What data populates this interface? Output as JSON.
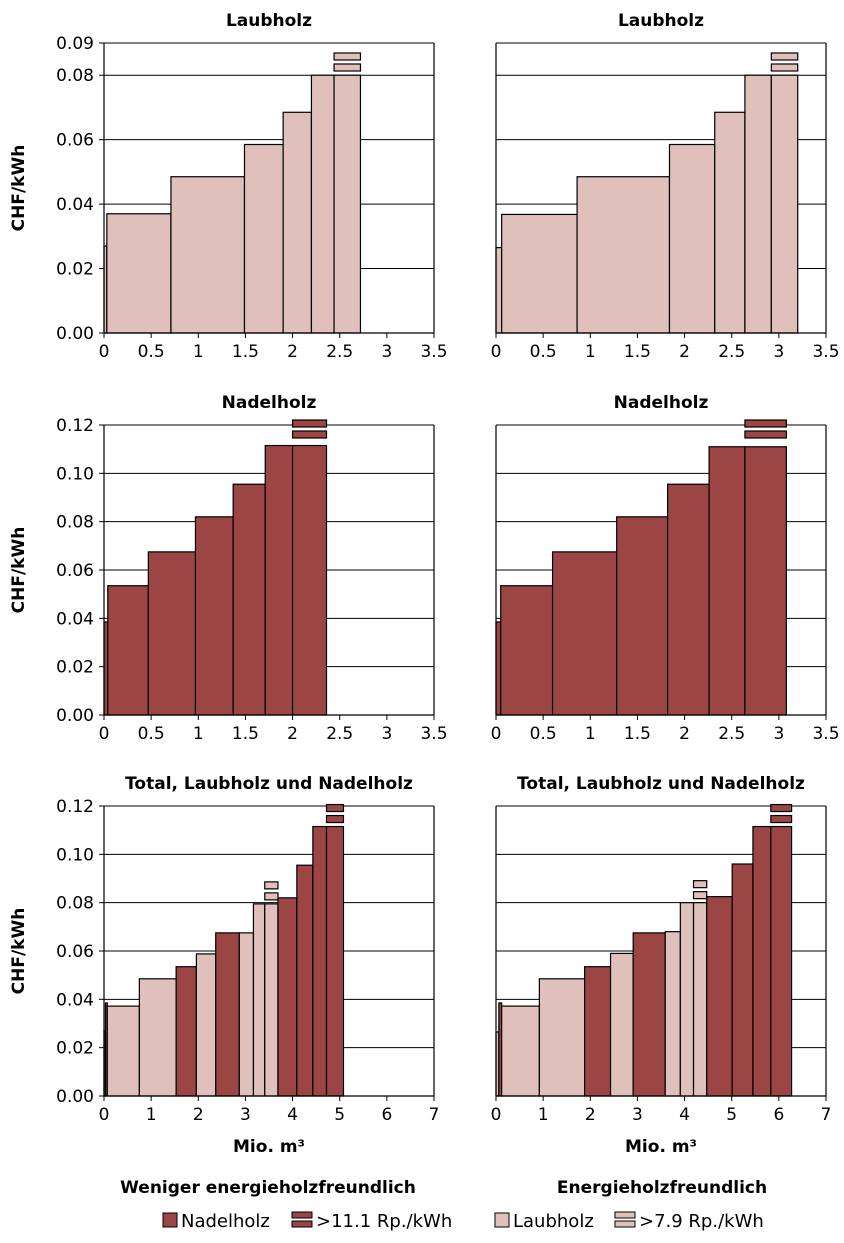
{
  "colors": {
    "nadelholz": "#9b4545",
    "laubholz": "#dfc0bb",
    "stroke": "#000000"
  },
  "column_captions": [
    "Weniger energieholzfreundlich",
    "Energieholzfreundlich"
  ],
  "legend": [
    {
      "label": "Nadelholz",
      "kind": "solid",
      "color_key": "nadelholz"
    },
    {
      "label": ">11.1 Rp./kWh",
      "kind": "striped",
      "color_key": "nadelholz"
    },
    {
      "label": "Laubholz",
      "kind": "solid",
      "color_key": "laubholz"
    },
    {
      "label": ">7.9 Rp./kWh",
      "kind": "striped",
      "color_key": "laubholz"
    }
  ],
  "chart_data": [
    {
      "type": "bar",
      "title": "Laubholz",
      "ylabel": "CHF/kWh",
      "xlabel": "",
      "xlim": [
        0,
        3.5
      ],
      "ylim": [
        0,
        0.09
      ],
      "xticks": [
        0,
        0.5,
        1,
        1.5,
        2,
        2.5,
        3,
        3.5
      ],
      "xtick_labels": [
        "0",
        "0.5",
        "1",
        "1.5",
        "2",
        "2.5",
        "3",
        "3.5"
      ],
      "yticks": [
        0,
        0.02,
        0.04,
        0.06,
        0.08,
        0.09
      ],
      "ytick_labels": [
        "0.00",
        "0.02",
        "0.04",
        "0.06",
        "0.08",
        "0.09"
      ],
      "grid_y": [
        0.02,
        0.04,
        0.06,
        0.08,
        0.09
      ],
      "segments": [
        {
          "x0": 0,
          "x1": 0.03,
          "y": 0.027,
          "kind": "laubholz"
        },
        {
          "x0": 0.03,
          "x1": 0.71,
          "y": 0.037,
          "kind": "laubholz"
        },
        {
          "x0": 0.71,
          "x1": 1.49,
          "y": 0.0485,
          "kind": "laubholz"
        },
        {
          "x0": 1.49,
          "x1": 1.9,
          "y": 0.0585,
          "kind": "laubholz"
        },
        {
          "x0": 1.9,
          "x1": 2.2,
          "y": 0.0685,
          "kind": "laubholz"
        },
        {
          "x0": 2.2,
          "x1": 2.44,
          "y": 0.08,
          "kind": "laubholz"
        },
        {
          "x0": 2.44,
          "x1": 2.72,
          "y": 0.08,
          "kind": "laubholz"
        }
      ],
      "extension": {
        "x0": 2.44,
        "x1": 2.72,
        "kind": "laubholz"
      }
    },
    {
      "type": "bar",
      "title": "Laubholz",
      "ylabel": "",
      "xlabel": "",
      "xlim": [
        0,
        3.5
      ],
      "ylim": [
        0,
        0.09
      ],
      "xticks": [
        0,
        0.5,
        1,
        1.5,
        2,
        2.5,
        3,
        3.5
      ],
      "xtick_labels": [
        "0",
        "0.5",
        "1",
        "1.5",
        "2",
        "2.5",
        "3",
        "3.5"
      ],
      "yticks": [],
      "ytick_labels": [],
      "grid_y": [
        0.02,
        0.04,
        0.06,
        0.08,
        0.09
      ],
      "segments": [
        {
          "x0": 0,
          "x1": 0.06,
          "y": 0.0265,
          "kind": "laubholz"
        },
        {
          "x0": 0.06,
          "x1": 0.86,
          "y": 0.0368,
          "kind": "laubholz"
        },
        {
          "x0": 0.86,
          "x1": 1.84,
          "y": 0.0485,
          "kind": "laubholz"
        },
        {
          "x0": 1.84,
          "x1": 2.32,
          "y": 0.0585,
          "kind": "laubholz"
        },
        {
          "x0": 2.32,
          "x1": 2.64,
          "y": 0.0685,
          "kind": "laubholz"
        },
        {
          "x0": 2.64,
          "x1": 2.92,
          "y": 0.08,
          "kind": "laubholz"
        },
        {
          "x0": 2.92,
          "x1": 3.2,
          "y": 0.08,
          "kind": "laubholz"
        }
      ],
      "extension": {
        "x0": 2.92,
        "x1": 3.2,
        "kind": "laubholz"
      }
    },
    {
      "type": "bar",
      "title": "Nadelholz",
      "ylabel": "CHF/kWh",
      "xlabel": "",
      "xlim": [
        0,
        3.5
      ],
      "ylim": [
        0,
        0.12
      ],
      "xticks": [
        0,
        0.5,
        1,
        1.5,
        2,
        2.5,
        3,
        3.5
      ],
      "xtick_labels": [
        "0",
        "0.5",
        "1",
        "1.5",
        "2",
        "2.5",
        "3",
        "3.5"
      ],
      "yticks": [
        0,
        0.02,
        0.04,
        0.06,
        0.08,
        0.1,
        0.12
      ],
      "ytick_labels": [
        "0.00",
        "0.02",
        "0.04",
        "0.06",
        "0.08",
        "0.10",
        "0.12"
      ],
      "grid_y": [
        0.02,
        0.04,
        0.06,
        0.08,
        0.1,
        0.12
      ],
      "segments": [
        {
          "x0": 0,
          "x1": 0.04,
          "y": 0.0385,
          "kind": "nadelholz"
        },
        {
          "x0": 0.04,
          "x1": 0.47,
          "y": 0.0535,
          "kind": "nadelholz"
        },
        {
          "x0": 0.47,
          "x1": 0.97,
          "y": 0.0675,
          "kind": "nadelholz"
        },
        {
          "x0": 0.97,
          "x1": 1.37,
          "y": 0.082,
          "kind": "nadelholz"
        },
        {
          "x0": 1.37,
          "x1": 1.71,
          "y": 0.0955,
          "kind": "nadelholz"
        },
        {
          "x0": 1.71,
          "x1": 2.0,
          "y": 0.1115,
          "kind": "nadelholz"
        },
        {
          "x0": 2.0,
          "x1": 2.36,
          "y": 0.1115,
          "kind": "nadelholz"
        }
      ],
      "extension": {
        "x0": 2.0,
        "x1": 2.36,
        "kind": "nadelholz"
      }
    },
    {
      "type": "bar",
      "title": "Nadelholz",
      "ylabel": "",
      "xlabel": "",
      "xlim": [
        0,
        3.5
      ],
      "ylim": [
        0,
        0.12
      ],
      "xticks": [
        0,
        0.5,
        1,
        1.5,
        2,
        2.5,
        3,
        3.5
      ],
      "xtick_labels": [
        "0",
        "0.5",
        "1",
        "1.5",
        "2",
        "2.5",
        "3",
        "3.5"
      ],
      "yticks": [],
      "ytick_labels": [],
      "grid_y": [
        0.02,
        0.04,
        0.06,
        0.08,
        0.1,
        0.12
      ],
      "segments": [
        {
          "x0": 0,
          "x1": 0.05,
          "y": 0.0385,
          "kind": "nadelholz"
        },
        {
          "x0": 0.05,
          "x1": 0.6,
          "y": 0.0535,
          "kind": "nadelholz"
        },
        {
          "x0": 0.6,
          "x1": 1.28,
          "y": 0.0675,
          "kind": "nadelholz"
        },
        {
          "x0": 1.28,
          "x1": 1.82,
          "y": 0.082,
          "kind": "nadelholz"
        },
        {
          "x0": 1.82,
          "x1": 2.26,
          "y": 0.0955,
          "kind": "nadelholz"
        },
        {
          "x0": 2.26,
          "x1": 2.64,
          "y": 0.111,
          "kind": "nadelholz"
        },
        {
          "x0": 2.64,
          "x1": 3.08,
          "y": 0.111,
          "kind": "nadelholz"
        }
      ],
      "extension": {
        "x0": 2.64,
        "x1": 3.08,
        "kind": "nadelholz"
      }
    },
    {
      "type": "bar",
      "title": "Total, Laubholz und Nadelholz",
      "ylabel": "CHF/kWh",
      "xlabel": "Mio. m³",
      "xlim": [
        0,
        7
      ],
      "ylim": [
        0,
        0.12
      ],
      "xticks": [
        0,
        1,
        2,
        3,
        4,
        5,
        6,
        7
      ],
      "xtick_labels": [
        "0",
        "1",
        "2",
        "3",
        "4",
        "5",
        "6",
        "7"
      ],
      "yticks": [
        0,
        0.02,
        0.04,
        0.06,
        0.08,
        0.1,
        0.12
      ],
      "ytick_labels": [
        "0.00",
        "0.02",
        "0.04",
        "0.06",
        "0.08",
        "0.10",
        "0.12"
      ],
      "grid_y": [
        0.02,
        0.04,
        0.06,
        0.08,
        0.1,
        0.12
      ],
      "segments": [
        {
          "x0": 0,
          "x1": 0.03,
          "y": 0.027,
          "kind": "laubholz"
        },
        {
          "x0": 0.03,
          "x1": 0.07,
          "y": 0.0385,
          "kind": "nadelholz"
        },
        {
          "x0": 0.07,
          "x1": 0.75,
          "y": 0.0372,
          "kind": "laubholz"
        },
        {
          "x0": 0.75,
          "x1": 1.53,
          "y": 0.0485,
          "kind": "laubholz"
        },
        {
          "x0": 1.53,
          "x1": 1.96,
          "y": 0.0535,
          "kind": "nadelholz"
        },
        {
          "x0": 1.96,
          "x1": 2.37,
          "y": 0.0588,
          "kind": "laubholz"
        },
        {
          "x0": 2.37,
          "x1": 2.87,
          "y": 0.0675,
          "kind": "nadelholz"
        },
        {
          "x0": 2.87,
          "x1": 3.17,
          "y": 0.0675,
          "kind": "laubholz"
        },
        {
          "x0": 3.17,
          "x1": 3.41,
          "y": 0.0795,
          "kind": "laubholz"
        },
        {
          "x0": 3.41,
          "x1": 3.69,
          "y": 0.0795,
          "kind": "laubholz"
        },
        {
          "x0": 3.69,
          "x1": 4.09,
          "y": 0.082,
          "kind": "nadelholz"
        },
        {
          "x0": 4.09,
          "x1": 4.43,
          "y": 0.0955,
          "kind": "nadelholz"
        },
        {
          "x0": 4.43,
          "x1": 4.72,
          "y": 0.1115,
          "kind": "nadelholz"
        },
        {
          "x0": 4.72,
          "x1": 5.08,
          "y": 0.1115,
          "kind": "nadelholz"
        }
      ],
      "extension_list": [
        {
          "x0": 3.41,
          "x1": 3.69,
          "y0": 0.0795,
          "kind": "laubholz"
        },
        {
          "x0": 4.72,
          "x1": 5.08,
          "y0": 0.1115,
          "kind": "nadelholz"
        }
      ]
    },
    {
      "type": "bar",
      "title": "Total, Laubholz und Nadelholz",
      "ylabel": "",
      "xlabel": "Mio. m³",
      "xlim": [
        0,
        7
      ],
      "ylim": [
        0,
        0.12
      ],
      "xticks": [
        0,
        1,
        2,
        3,
        4,
        5,
        6,
        7
      ],
      "xtick_labels": [
        "0",
        "1",
        "2",
        "3",
        "4",
        "5",
        "6",
        "7"
      ],
      "yticks": [],
      "ytick_labels": [],
      "grid_y": [
        0.02,
        0.04,
        0.06,
        0.08,
        0.1,
        0.12
      ],
      "segments": [
        {
          "x0": 0,
          "x1": 0.06,
          "y": 0.0265,
          "kind": "laubholz"
        },
        {
          "x0": 0.06,
          "x1": 0.12,
          "y": 0.0385,
          "kind": "nadelholz"
        },
        {
          "x0": 0.12,
          "x1": 0.92,
          "y": 0.0372,
          "kind": "laubholz"
        },
        {
          "x0": 0.92,
          "x1": 1.88,
          "y": 0.0485,
          "kind": "laubholz"
        },
        {
          "x0": 1.88,
          "x1": 2.43,
          "y": 0.0535,
          "kind": "nadelholz"
        },
        {
          "x0": 2.43,
          "x1": 2.91,
          "y": 0.059,
          "kind": "laubholz"
        },
        {
          "x0": 2.91,
          "x1": 3.59,
          "y": 0.0675,
          "kind": "nadelholz"
        },
        {
          "x0": 3.59,
          "x1": 3.91,
          "y": 0.068,
          "kind": "laubholz"
        },
        {
          "x0": 3.91,
          "x1": 4.19,
          "y": 0.08,
          "kind": "laubholz"
        },
        {
          "x0": 4.19,
          "x1": 4.47,
          "y": 0.08,
          "kind": "laubholz"
        },
        {
          "x0": 4.47,
          "x1": 5.01,
          "y": 0.0825,
          "kind": "nadelholz"
        },
        {
          "x0": 5.01,
          "x1": 5.45,
          "y": 0.096,
          "kind": "nadelholz"
        },
        {
          "x0": 5.45,
          "x1": 5.83,
          "y": 0.1115,
          "kind": "nadelholz"
        },
        {
          "x0": 5.83,
          "x1": 6.27,
          "y": 0.1115,
          "kind": "nadelholz"
        }
      ],
      "extension_list": [
        {
          "x0": 4.19,
          "x1": 4.47,
          "y0": 0.08,
          "kind": "laubholz"
        },
        {
          "x0": 5.83,
          "x1": 6.27,
          "y0": 0.1115,
          "kind": "nadelholz"
        }
      ]
    }
  ]
}
